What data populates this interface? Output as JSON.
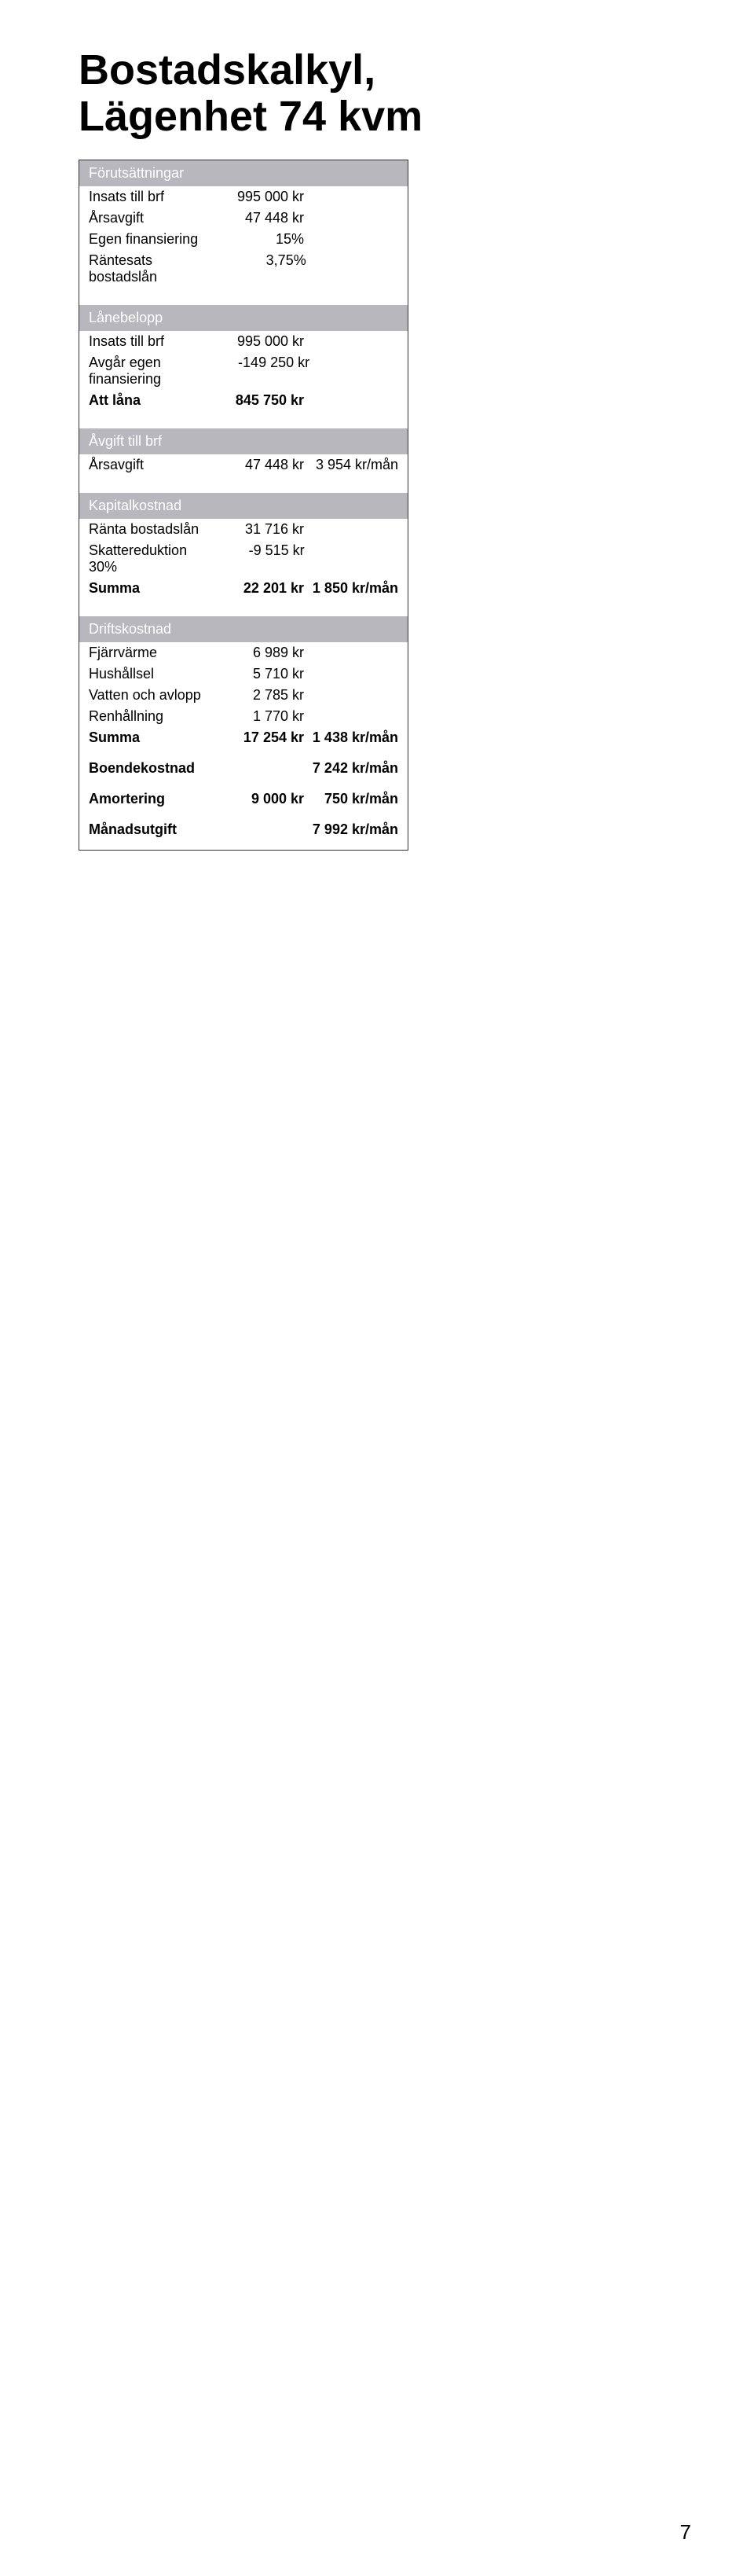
{
  "title_line1": "Bostadskalkyl,",
  "title_line2": "Lägenhet 74 kvm",
  "colors": {
    "header_bg": "#b7b7bd",
    "card_border": "#333333",
    "text": "#000000",
    "page_bg": "#ffffff"
  },
  "typography": {
    "title_fontsize": 54,
    "body_fontsize": 18,
    "title_weight": 700
  },
  "sections": {
    "forutsattningar": {
      "header": "Förutsättningar",
      "rows": [
        {
          "label": "Insats till brf",
          "v1": "995 000 kr"
        },
        {
          "label": "Årsavgift",
          "v1": "47 448 kr"
        },
        {
          "label": "Egen finansiering",
          "v1": "15%"
        },
        {
          "label": "Räntesats bostadslån",
          "v1": "3,75%"
        }
      ]
    },
    "lanebelopp": {
      "header": "Lånebelopp",
      "rows": [
        {
          "label": "Insats till brf",
          "v1": "995 000 kr"
        },
        {
          "label": "Avgår egen finansiering",
          "v1": "-149 250 kr"
        }
      ],
      "sum": {
        "label": "Att låna",
        "v1": "845 750 kr"
      }
    },
    "avgift": {
      "header": "Åvgift till brf",
      "rows": [
        {
          "label": "Årsavgift",
          "v1": "47 448 kr",
          "v2": "3 954 kr/mån"
        }
      ]
    },
    "kapital": {
      "header": "Kapitalkostnad",
      "rows": [
        {
          "label": "Ränta bostadslån",
          "v1": "31 716 kr"
        },
        {
          "label": "Skattereduktion 30%",
          "v1": "-9 515 kr"
        }
      ],
      "sum": {
        "label": "Summa",
        "v1": "22 201 kr",
        "v2": "1 850 kr/mån"
      }
    },
    "drift": {
      "header": "Driftskostnad",
      "rows": [
        {
          "label": "Fjärrvärme",
          "v1": "6 989 kr"
        },
        {
          "label": "Hushållsel",
          "v1": "5 710 kr"
        },
        {
          "label": "Vatten och avlopp",
          "v1": "2 785 kr"
        },
        {
          "label": "Renhållning",
          "v1": "1 770 kr"
        }
      ],
      "sum": {
        "label": "Summa",
        "v1": "17 254 kr",
        "v2": "1 438 kr/mån"
      }
    },
    "bottom": {
      "boende": {
        "label": "Boendekostnad",
        "v2": "7 242 kr/mån"
      },
      "amort": {
        "label": "Amortering",
        "v1": "9 000 kr",
        "v2": "750 kr/mån"
      },
      "manad": {
        "label": "Månadsutgift",
        "v2": "7 992 kr/mån"
      }
    }
  },
  "page_number": "7"
}
